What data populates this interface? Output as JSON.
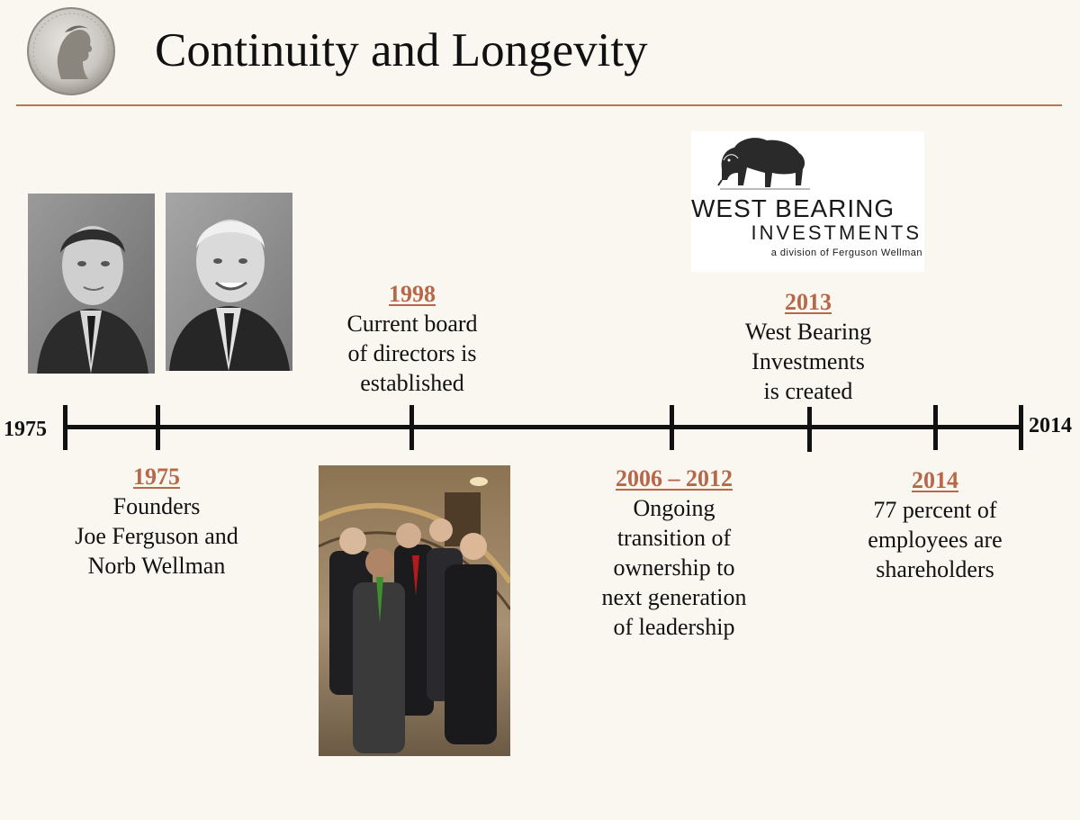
{
  "header": {
    "title": "Continuity and Longevity",
    "coin_icon": "roman-coin-icon"
  },
  "logo": {
    "line1": "WEST BEARING",
    "line2": "INVESTMENTS",
    "line3": "a division of Ferguson Wellman",
    "icon": "bison-icon"
  },
  "timeline": {
    "start_label": "1975",
    "end_label": "2014",
    "events": [
      {
        "year": "1975",
        "lines": [
          "Founders",
          "Joe Ferguson and",
          "Norb Wellman"
        ]
      },
      {
        "year": "1998",
        "lines": [
          "Current board",
          "of directors is",
          "established"
        ]
      },
      {
        "year": "2006 – 2012",
        "lines": [
          "Ongoing",
          "transition of",
          "ownership to",
          "next generation",
          "of leadership"
        ]
      },
      {
        "year": "2013",
        "lines": [
          "West Bearing",
          "Investments",
          "is created"
        ]
      },
      {
        "year": "2014",
        "lines": [
          "77 percent of",
          "employees are",
          "shareholders"
        ]
      }
    ]
  },
  "colors": {
    "background": "#faf7f1",
    "accent": "#b8684a",
    "rule": "#c0714f"
  }
}
